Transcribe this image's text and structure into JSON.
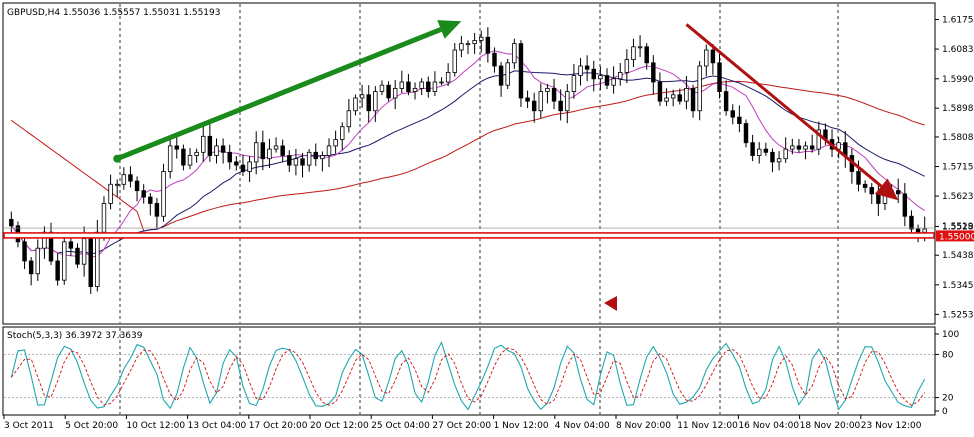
{
  "chart_data": {
    "type": "candlestick",
    "symbol_line": "GBPUSD,H4  1.55036 1.55557 1.55031 1.55193",
    "price_axis": {
      "range": [
        1.5226,
        1.6224
      ],
      "ticks": [
        1.61755,
        1.6083,
        1.599,
        1.5898,
        1.5808,
        1.57155,
        1.5623,
        1.5528,
        1.5438,
        1.53455,
        1.5253
      ],
      "tick_labels": [
        "1.61755",
        "1.60830",
        "1.59900",
        "1.58980",
        "1.58080",
        "1.57155",
        "1.56230",
        "1.55280",
        "1.54380",
        "1.53455",
        "1.52530"
      ],
      "current_price_label": "1.55193",
      "level_label": "1.55000"
    },
    "horizontal_level": 1.55,
    "time_axis": {
      "labels": [
        "3 Oct 2011",
        "5 Oct 20:00",
        "10 Oct 12:00",
        "13 Oct 04:00",
        "17 Oct 20:00",
        "20 Oct 12:00",
        "25 Oct 04:00",
        "27 Oct 20:00",
        "1 Nov 12:00",
        "4 Nov 04:00",
        "8 Nov 20:00",
        "11 Nov 12:00",
        "16 Nov 04:00",
        "18 Nov 20:00",
        "23 Nov 12:00"
      ]
    },
    "trend_arrows": [
      {
        "color": "#1a8a1a",
        "from": {
          "bar": 16,
          "price": 1.574
        },
        "to": {
          "bar": 68,
          "price": 1.617
        }
      },
      {
        "color": "#b01010",
        "from": {
          "bar": 102,
          "price": 1.616
        },
        "to": {
          "bar": 134,
          "price": 1.561
        }
      }
    ],
    "candles_anchor_closes": [
      1.553,
      1.548,
      1.542,
      1.538,
      1.546,
      1.551,
      1.542,
      1.536,
      1.548,
      1.546,
      1.541,
      1.549,
      1.534,
      1.551,
      1.56,
      1.566,
      1.566,
      1.569,
      1.567,
      1.564,
      1.562,
      1.56,
      1.556,
      1.57,
      1.578,
      1.577,
      1.572,
      1.575,
      1.576,
      1.581,
      1.575,
      1.578,
      1.576,
      1.573,
      1.572,
      1.57,
      1.573,
      1.579,
      1.574,
      1.577,
      1.578,
      1.575,
      1.572,
      1.574,
      1.572,
      1.576,
      1.574,
      1.575,
      1.578,
      1.58,
      1.584,
      1.589,
      1.593,
      1.594,
      1.589,
      1.595,
      1.597,
      1.593,
      1.596,
      1.598,
      1.595,
      1.596,
      1.598,
      1.595,
      1.598,
      1.598,
      1.601,
      1.608,
      1.61,
      1.61,
      1.611,
      1.612,
      1.607,
      1.603,
      1.597,
      1.604,
      1.61,
      1.593,
      1.592,
      1.589,
      1.595,
      1.596,
      1.592,
      1.589,
      1.595,
      1.6,
      1.603,
      1.602,
      1.599,
      1.6,
      1.597,
      1.599,
      1.601,
      1.605,
      1.609,
      1.609,
      1.604,
      1.598,
      1.592,
      1.593,
      1.594,
      1.592,
      1.596,
      1.589,
      1.603,
      1.608,
      1.604,
      1.595,
      1.589,
      1.587,
      1.585,
      1.579,
      1.575,
      1.577,
      1.576,
      1.573,
      1.574,
      1.577,
      1.578,
      1.577,
      1.578,
      1.577,
      1.583,
      1.58,
      1.577,
      1.579,
      1.575,
      1.57,
      1.566,
      1.565,
      1.563,
      1.56,
      1.564,
      1.564,
      1.563,
      1.556,
      1.552,
      1.551,
      1.552
    ],
    "moving_averages": [
      {
        "color": "#c01818",
        "period": "slow"
      },
      {
        "color": "#1a1a6a",
        "period": "medium"
      },
      {
        "color": "#c040c0",
        "period": "fast"
      }
    ],
    "stochastic": {
      "label": "Stoch(5,3,3) 36.3972 37.3639",
      "range": [
        0,
        100
      ],
      "ticks": [
        100,
        80,
        20,
        0
      ],
      "tick_labels": [
        "100",
        "80",
        "20",
        "0"
      ],
      "main_color": "#1fa8b0",
      "signal_color": "#d01010"
    }
  }
}
